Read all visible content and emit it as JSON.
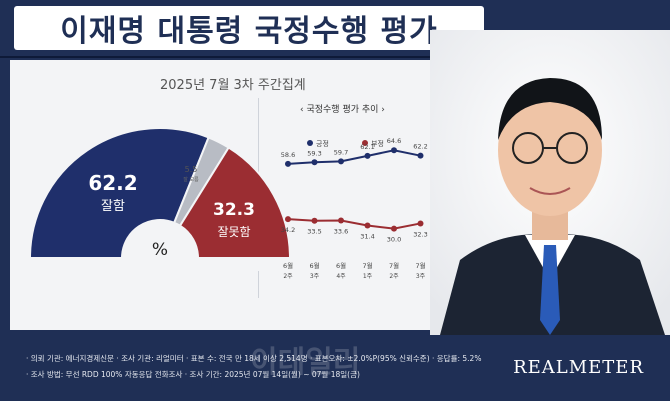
{
  "title": "이재명 대통령 국정수행 평가",
  "subtitle": "2025년 7월 3차 주간집계",
  "colors": {
    "positive": "#1f2f6b",
    "negative": "#9b2d32",
    "other": "#b8bcc4",
    "navy": "#1f2f55"
  },
  "gauge": {
    "positive": {
      "value": "62.2",
      "label": "잘함"
    },
    "negative": {
      "value": "32.3",
      "label": "잘못함"
    },
    "other": {
      "value": "5.5",
      "label": "잘 모름"
    },
    "center": "%"
  },
  "trend": {
    "title": "국정수행 평가 추이",
    "legend_positive": "긍정",
    "legend_negative": "부정",
    "x_labels": [
      [
        "6월",
        "2주"
      ],
      [
        "6월",
        "3주"
      ],
      [
        "6월",
        "4주"
      ],
      [
        "7월",
        "1주"
      ],
      [
        "7월",
        "2주"
      ],
      [
        "7월",
        "3주"
      ]
    ]
  },
  "chart_data": [
    {
      "type": "pie",
      "title": "2025년 7월 3차 주간집계",
      "slices": [
        {
          "label": "잘함",
          "value": 62.2
        },
        {
          "label": "잘 모름",
          "value": 5.5
        },
        {
          "label": "잘못함",
          "value": 32.3
        }
      ]
    },
    {
      "type": "line",
      "title": "국정수行 평가 추이",
      "categories": [
        "6월 2주",
        "6월 3주",
        "6월 4주",
        "7월 1주",
        "7월 2주",
        "7월 3주"
      ],
      "series": [
        {
          "name": "긍정",
          "values": [
            58.6,
            59.3,
            59.7,
            62.1,
            64.6,
            62.2
          ]
        },
        {
          "name": "부정",
          "values": [
            34.2,
            33.5,
            33.6,
            31.4,
            30.0,
            32.3
          ]
        }
      ]
    }
  ],
  "footer": {
    "line1": "· 의뢰 기관: 에너지경제신문 · 조사 기관: 리얼미터 · 표본 수: 전국 만 18세 이상 2,514명 · 표본오차: ±2.0%P(95% 신뢰수준) · 응답률: 5.2%",
    "line2": "· 조사 방법: 무선 RDD 100% 자동응답 전화조사 · 조사 기간: 2025년 07월 14일(월) ~ 07월 18일(금)",
    "brand": "REALMETER",
    "watermark": "이데일리"
  }
}
